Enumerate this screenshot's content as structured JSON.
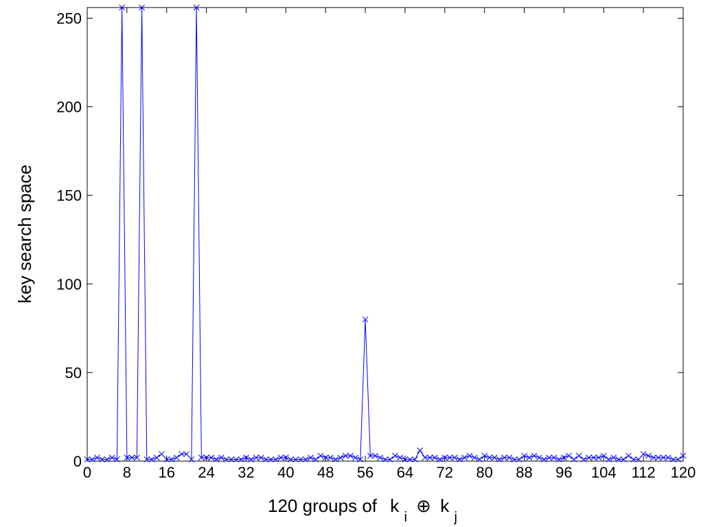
{
  "chart_data": {
    "type": "line",
    "xlabel": "120 groups of",
    "xlabel_math": {
      "k1": "k",
      "sub1": "i",
      "op": "⊕",
      "k2": "k",
      "sub2": "j"
    },
    "ylabel": "key search space",
    "xlim": [
      0,
      120
    ],
    "ylim": [
      0,
      256
    ],
    "xticks": [
      0,
      8,
      16,
      24,
      32,
      40,
      48,
      56,
      64,
      72,
      80,
      88,
      96,
      104,
      112,
      120
    ],
    "yticks": [
      0,
      50,
      100,
      150,
      200,
      250
    ],
    "grid": false,
    "marker": "x",
    "line_color": "#0000ff",
    "series": [
      {
        "values": [
          1,
          1,
          2,
          1,
          1,
          2,
          1,
          256,
          2,
          2,
          2,
          256,
          1,
          1,
          2,
          4,
          1,
          1,
          2,
          4,
          4,
          1,
          256,
          2,
          2,
          2,
          1,
          2,
          1,
          1,
          1,
          1,
          2,
          1,
          2,
          2,
          1,
          1,
          1,
          2,
          2,
          1,
          1,
          1,
          1,
          2,
          1,
          3,
          2,
          2,
          1,
          2,
          3,
          3,
          2,
          1,
          80,
          3,
          3,
          2,
          1,
          1,
          3,
          2,
          1,
          1,
          1,
          6,
          2,
          2,
          2,
          1,
          2,
          2,
          2,
          1,
          2,
          3,
          2,
          1,
          3,
          2,
          2,
          1,
          2,
          2,
          1,
          1,
          3,
          2,
          3,
          2,
          1,
          2,
          2,
          1,
          2,
          3,
          1,
          3,
          1,
          2,
          2,
          2,
          3,
          1,
          2,
          1,
          1,
          3,
          1,
          1,
          4,
          3,
          2,
          2,
          2,
          2,
          1,
          1,
          3
        ]
      }
    ]
  }
}
